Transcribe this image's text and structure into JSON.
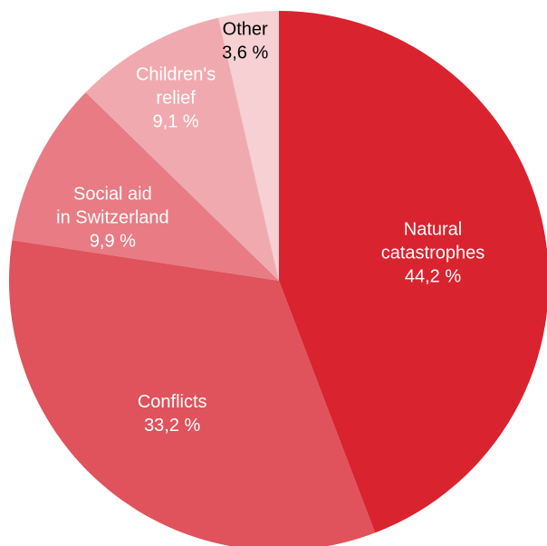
{
  "chart_data": {
    "type": "pie",
    "start_angle_deg": 0,
    "direction": "clockwise",
    "slices": [
      {
        "label": [
          "Natural",
          "catastrophes"
        ],
        "value": 44.2,
        "value_text": "44,2 %",
        "color": "#d9232e",
        "text_color": "#ffffff"
      },
      {
        "label": [
          "Conflicts"
        ],
        "value": 33.2,
        "value_text": "33,2 %",
        "color": "#e0525c",
        "text_color": "#ffffff"
      },
      {
        "label": [
          "Social aid",
          "in Switzerland"
        ],
        "value": 9.9,
        "value_text": "9,9 %",
        "color": "#e87b83",
        "text_color": "#ffffff"
      },
      {
        "label": [
          "Children's",
          "relief"
        ],
        "value": 9.1,
        "value_text": "9,1 %",
        "color": "#f0aaaf",
        "text_color": "#ffffff"
      },
      {
        "label": [
          "Other"
        ],
        "value": 3.6,
        "value_text": "3,6 %",
        "color": "#f6d0d3",
        "text_color": "#000000"
      }
    ]
  }
}
